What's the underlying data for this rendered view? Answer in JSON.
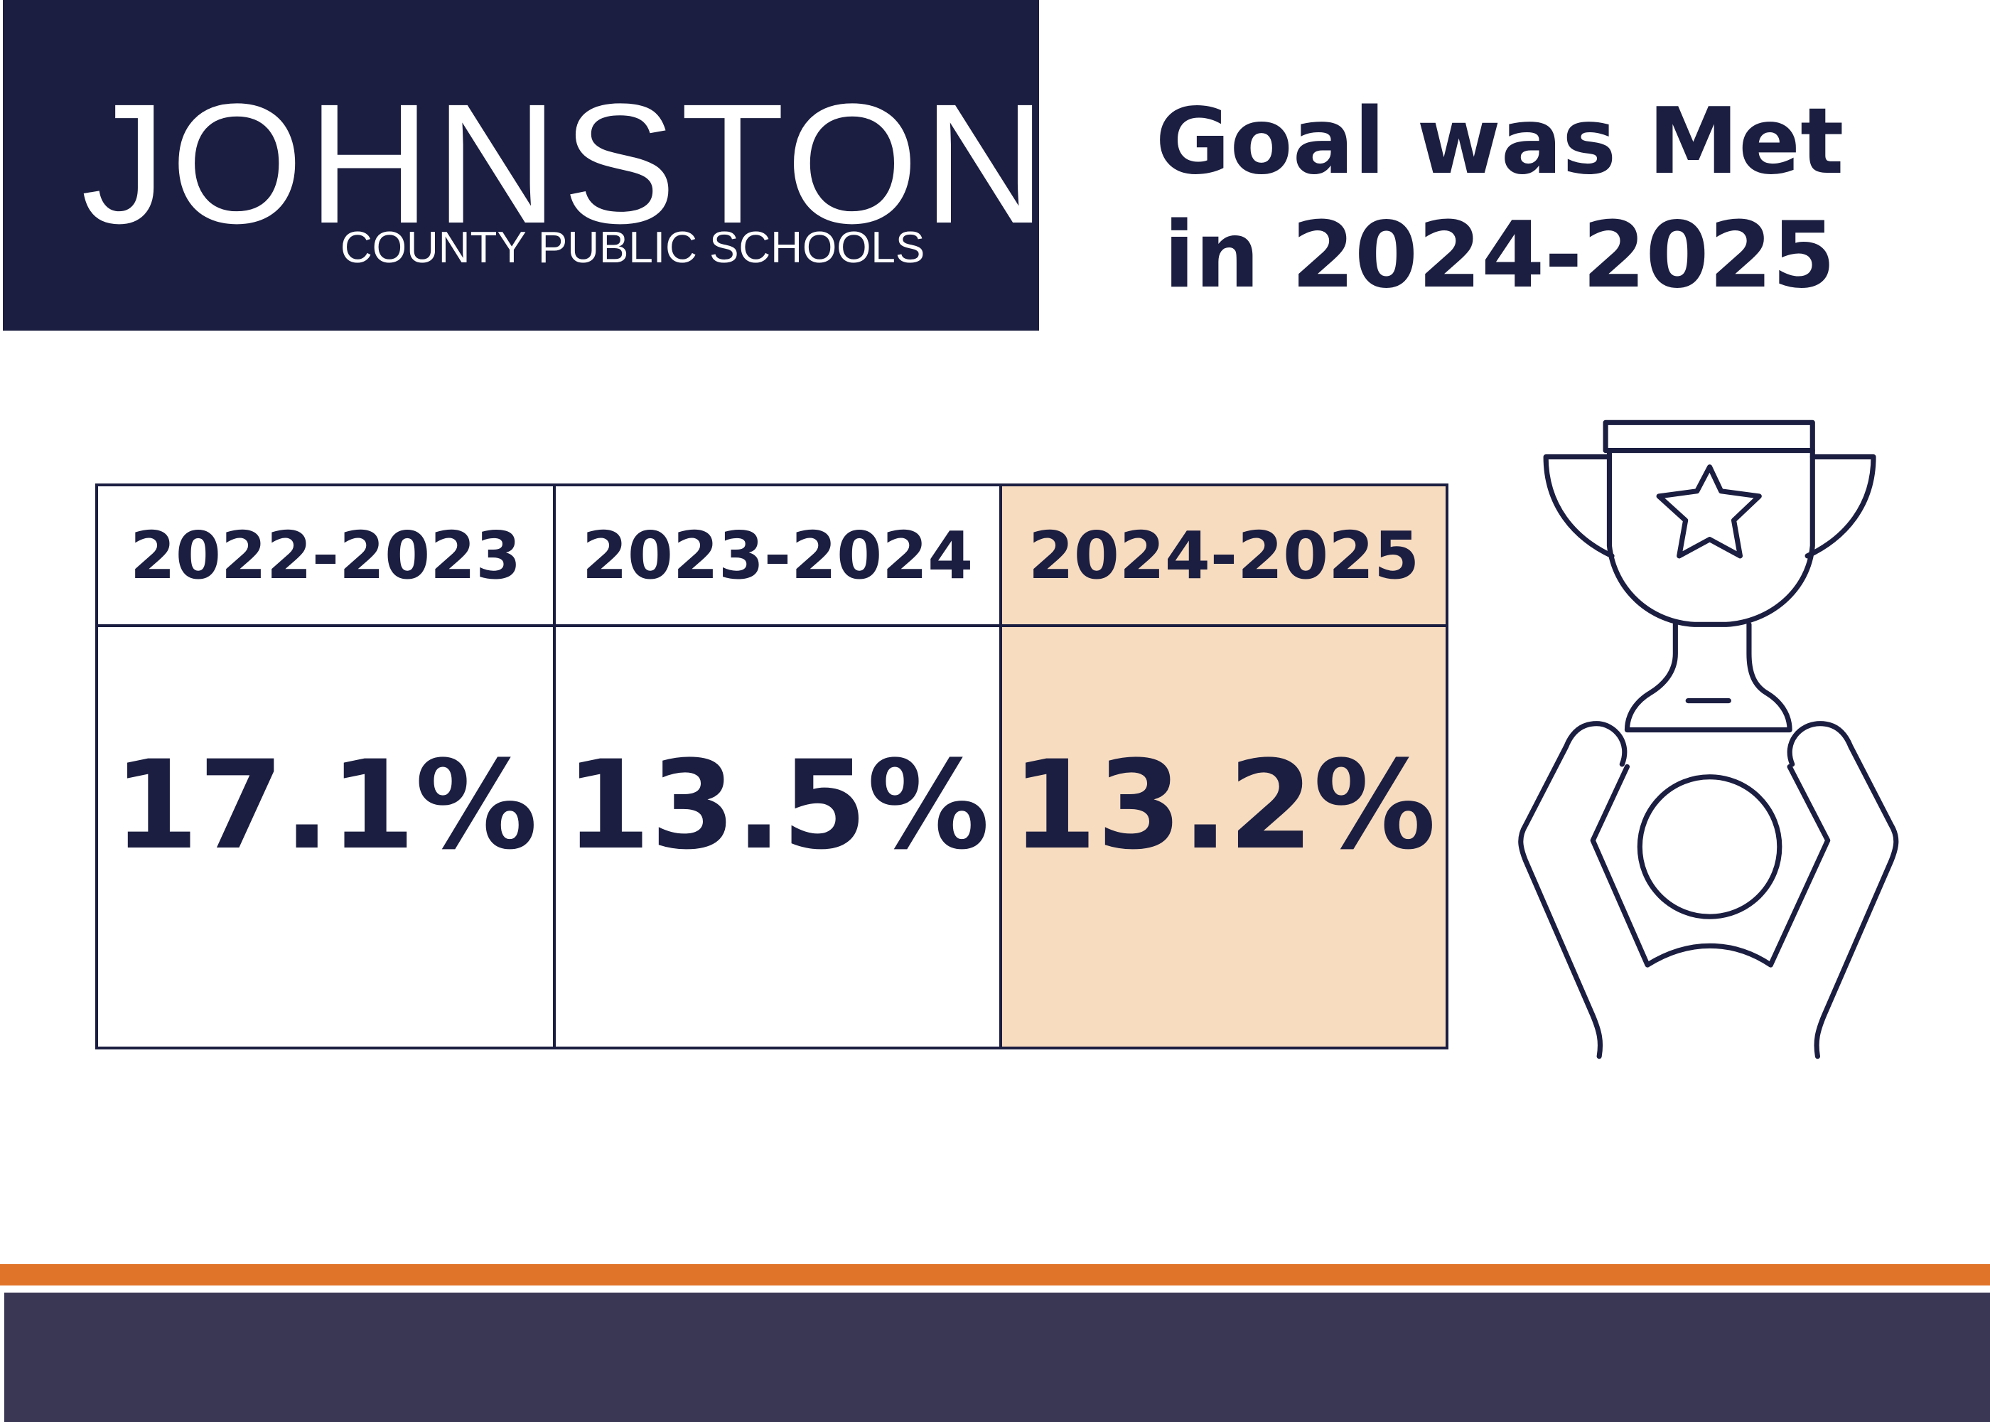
{
  "header": {
    "logo_name": "JOHNSTON",
    "logo_subtitle": "COUNTY PUBLIC SCHOOLS",
    "title": "Goal was Met in 2024-2025"
  },
  "table": {
    "columns": [
      "2022-2023",
      "2023-2024",
      "2024-2025"
    ],
    "rows": [
      [
        "17.1%",
        "13.5%",
        "13.2%"
      ]
    ]
  }
}
